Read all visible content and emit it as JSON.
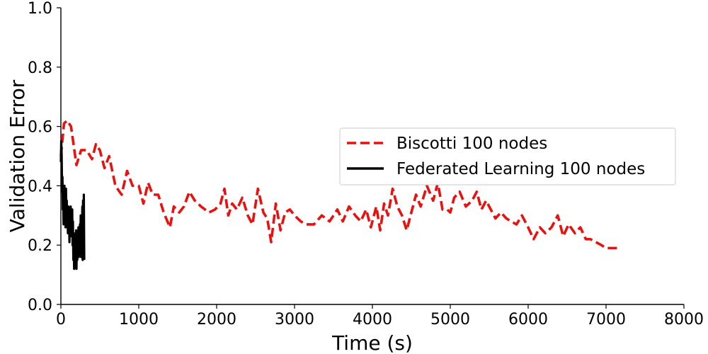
{
  "chart_data": {
    "type": "line",
    "title": "",
    "xlabel": "Time (s)",
    "ylabel": "Validation Error",
    "xlim": [
      0,
      8000
    ],
    "ylim": [
      0.0,
      1.0
    ],
    "xticks": [
      "0",
      "1000",
      "2000",
      "3000",
      "4000",
      "5000",
      "6000",
      "7000",
      "8000"
    ],
    "yticks": [
      "0.0",
      "0.2",
      "0.4",
      "0.6",
      "0.8",
      "1.0"
    ],
    "grid": false,
    "legend_position": "center-right",
    "series": [
      {
        "name": "Biscotti 100 nodes",
        "color": "#e8110f",
        "style": "dashed",
        "x": [
          0,
          40,
          80,
          130,
          200,
          260,
          330,
          400,
          450,
          500,
          560,
          620,
          700,
          780,
          850,
          920,
          1000,
          1060,
          1120,
          1180,
          1250,
          1320,
          1400,
          1450,
          1520,
          1580,
          1650,
          1720,
          1800,
          1900,
          1980,
          2050,
          2100,
          2150,
          2200,
          2260,
          2330,
          2400,
          2460,
          2530,
          2600,
          2650,
          2700,
          2760,
          2820,
          2880,
          2940,
          3000,
          3080,
          3150,
          3250,
          3350,
          3450,
          3550,
          3620,
          3700,
          3780,
          3850,
          3920,
          3980,
          4050,
          4100,
          4150,
          4200,
          4260,
          4320,
          4380,
          4440,
          4500,
          4560,
          4620,
          4700,
          4780,
          4840,
          4900,
          4960,
          5000,
          5050,
          5120,
          5200,
          5280,
          5340,
          5400,
          5460,
          5520,
          5580,
          5650,
          5720,
          5780,
          5850,
          5920,
          6000,
          6070,
          6150,
          6220,
          6300,
          6380,
          6450,
          6520,
          6600,
          6670,
          6740,
          6800,
          6870,
          6940,
          7000,
          7080,
          7180
        ],
        "y": [
          0.5,
          0.61,
          0.62,
          0.6,
          0.47,
          0.52,
          0.52,
          0.49,
          0.54,
          0.52,
          0.46,
          0.5,
          0.4,
          0.37,
          0.45,
          0.4,
          0.4,
          0.34,
          0.41,
          0.37,
          0.37,
          0.31,
          0.26,
          0.33,
          0.31,
          0.33,
          0.38,
          0.35,
          0.33,
          0.31,
          0.32,
          0.34,
          0.39,
          0.3,
          0.34,
          0.32,
          0.36,
          0.3,
          0.27,
          0.39,
          0.31,
          0.29,
          0.21,
          0.34,
          0.25,
          0.31,
          0.32,
          0.3,
          0.28,
          0.27,
          0.27,
          0.3,
          0.28,
          0.32,
          0.28,
          0.33,
          0.3,
          0.28,
          0.32,
          0.26,
          0.33,
          0.25,
          0.34,
          0.3,
          0.39,
          0.33,
          0.3,
          0.25,
          0.31,
          0.37,
          0.33,
          0.4,
          0.35,
          0.41,
          0.32,
          0.32,
          0.31,
          0.36,
          0.38,
          0.33,
          0.35,
          0.38,
          0.32,
          0.35,
          0.32,
          0.29,
          0.31,
          0.29,
          0.28,
          0.27,
          0.3,
          0.26,
          0.22,
          0.26,
          0.24,
          0.26,
          0.3,
          0.23,
          0.27,
          0.24,
          0.26,
          0.22,
          0.22,
          0.21,
          0.2,
          0.19,
          0.19,
          0.19
        ]
      },
      {
        "name": "Federated Learning 100 nodes",
        "color": "#000000",
        "style": "solid",
        "x": [
          0,
          5,
          10,
          15,
          20,
          25,
          30,
          35,
          40,
          45,
          50,
          55,
          60,
          65,
          70,
          75,
          80,
          85,
          90,
          95,
          100,
          105,
          110,
          115,
          120,
          125,
          130,
          135,
          140,
          145,
          150,
          155,
          160,
          165,
          170,
          175,
          180,
          185,
          190,
          195,
          200,
          205,
          210,
          215,
          220,
          225,
          230,
          235,
          240,
          245,
          250,
          255,
          260,
          265,
          270,
          275,
          280,
          285,
          290,
          295,
          300
        ],
        "y": [
          0.48,
          0.55,
          0.5,
          0.38,
          0.43,
          0.32,
          0.36,
          0.27,
          0.34,
          0.4,
          0.3,
          0.36,
          0.26,
          0.39,
          0.29,
          0.35,
          0.27,
          0.32,
          0.24,
          0.33,
          0.27,
          0.3,
          0.21,
          0.31,
          0.28,
          0.33,
          0.23,
          0.3,
          0.26,
          0.32,
          0.2,
          0.28,
          0.15,
          0.24,
          0.12,
          0.2,
          0.14,
          0.22,
          0.17,
          0.25,
          0.12,
          0.2,
          0.15,
          0.23,
          0.18,
          0.26,
          0.16,
          0.22,
          0.18,
          0.27,
          0.2,
          0.3,
          0.16,
          0.25,
          0.2,
          0.33,
          0.15,
          0.35,
          0.2,
          0.37,
          0.15
        ]
      }
    ]
  }
}
